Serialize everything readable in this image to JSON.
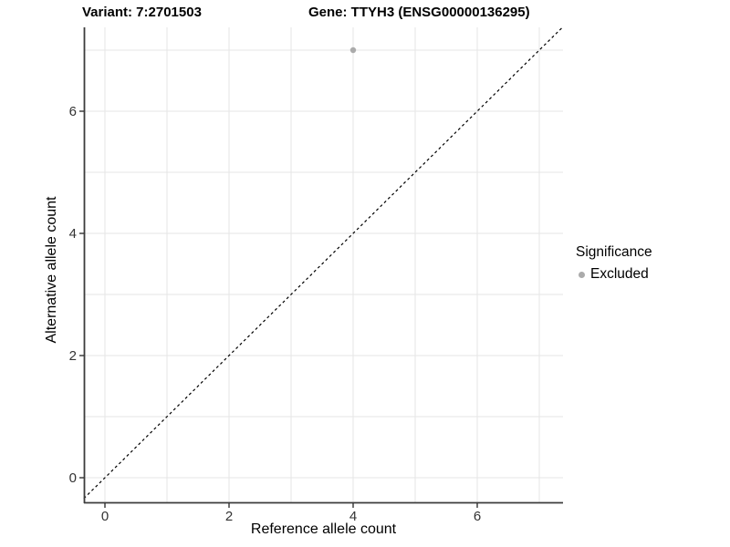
{
  "title": {
    "variant_label": "Variant: 7:2701503",
    "gene_label": "Gene: TTYH3 (ENSG00000136295)"
  },
  "axes": {
    "x_label": "Reference allele count",
    "y_label": "Alternative allele count"
  },
  "legend": {
    "title": "Significance",
    "items": [
      {
        "label": "Excluded",
        "color": "#ababab"
      }
    ]
  },
  "chart_data": {
    "type": "scatter",
    "title": "Variant: 7:2701503   Gene: TTYH3 (ENSG00000136295)",
    "xlabel": "Reference allele count",
    "ylabel": "Alternative allele count",
    "series": [
      {
        "name": "Excluded",
        "color": "#ababab",
        "points": [
          {
            "x": 4,
            "y": 7
          }
        ]
      }
    ],
    "reference_line": {
      "type": "identity",
      "style": "dashed",
      "color": "#000000"
    },
    "x_ticks": [
      0,
      2,
      4,
      6
    ],
    "y_ticks": [
      0,
      2,
      4,
      6
    ],
    "grid_positions_x": [
      0,
      1,
      2,
      3,
      4,
      5,
      6,
      7
    ],
    "grid_positions_y": [
      0,
      1,
      2,
      3,
      4,
      5,
      6,
      7
    ],
    "xlim": [
      -0.34,
      7.38
    ],
    "ylim": [
      -0.42,
      7.37
    ],
    "grid": true,
    "legend_position": "right",
    "colors": {
      "grid": "#e5e5e5",
      "axis": "#3c3c3c",
      "tick_label": "#333333",
      "point": "#ababab",
      "background": "#ffffff"
    }
  }
}
